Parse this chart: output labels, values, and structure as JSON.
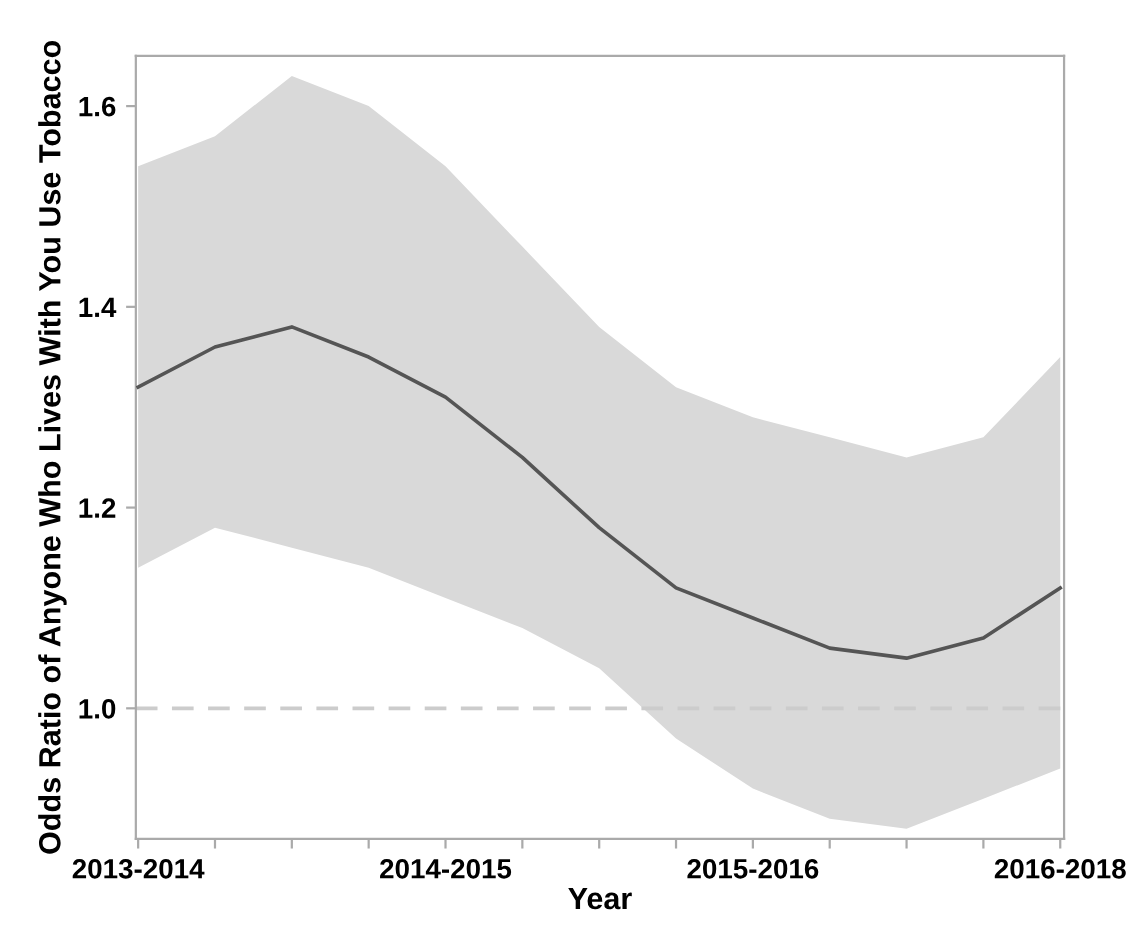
{
  "chart_data": {
    "type": "line",
    "xlabel": "Year",
    "ylabel": "Odds Ratio of Anyone Who Lives With You Use Tobacco",
    "categories": [
      "2013-2014",
      null,
      null,
      null,
      "2014-2015",
      null,
      null,
      null,
      "2015-2016",
      null,
      null,
      null,
      "2016-2018"
    ],
    "series": [
      {
        "color": "#555555",
        "values": [
          1.32,
          1.36,
          1.38,
          1.35,
          1.31,
          1.25,
          1.18,
          1.12,
          1.09,
          1.06,
          1.05,
          1.07,
          1.12
        ],
        "lower": [
          1.14,
          1.18,
          1.16,
          1.14,
          1.11,
          1.08,
          1.04,
          0.97,
          0.92,
          0.89,
          0.88,
          0.91,
          0.94
        ],
        "upper": [
          1.54,
          1.57,
          1.63,
          1.6,
          1.54,
          1.46,
          1.38,
          1.32,
          1.29,
          1.27,
          1.25,
          1.27,
          1.35
        ]
      }
    ],
    "ylim": [
      0.87,
      1.65
    ],
    "yticks": [
      {
        "value": 1.0,
        "label": "1.0"
      },
      {
        "value": 1.2,
        "label": "1.2"
      },
      {
        "value": 1.4,
        "label": "1.4"
      },
      {
        "value": 1.6,
        "label": "1.6"
      }
    ],
    "ref_lines": [
      {
        "axis": "y",
        "value": 1.0,
        "color": "#cccccc",
        "line_style": "dashed"
      }
    ],
    "grid": false,
    "legend": false,
    "marker": "none",
    "line_style": "solid"
  }
}
